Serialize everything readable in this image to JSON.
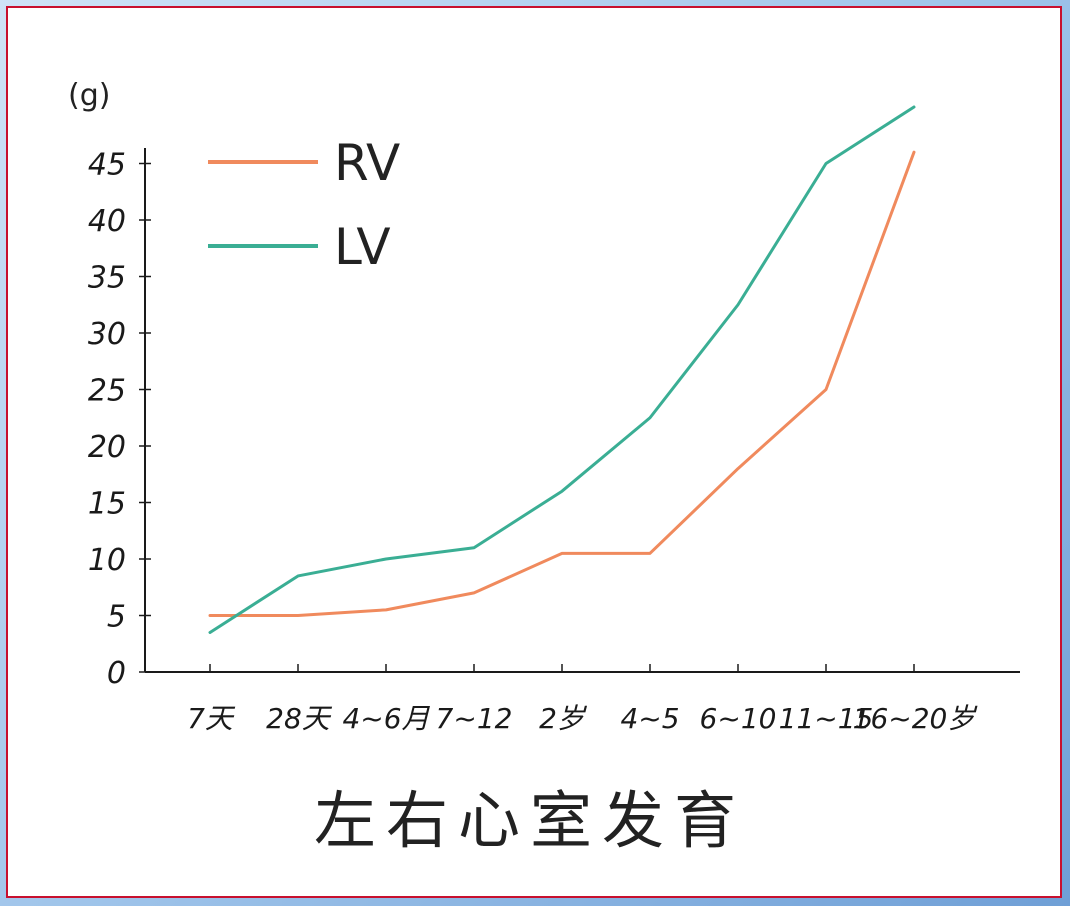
{
  "chart_data": {
    "type": "line",
    "title": "左右心室发育",
    "ylabel": "(g)",
    "xlabel": "",
    "categories": [
      "7天",
      "28天",
      "4~6月",
      "7~12",
      "2岁",
      "4~5",
      "6~10",
      "11~15",
      "16~20岁"
    ],
    "y_ticks": [
      "0",
      "5",
      "10",
      "15",
      "20",
      "25",
      "30",
      "35",
      "40",
      "45"
    ],
    "ylim": [
      0,
      50
    ],
    "grid": false,
    "legend_position": "top-left",
    "series": [
      {
        "name": "RV",
        "color": "#f08a5d",
        "x": [
          0,
          1,
          2,
          3,
          4,
          5,
          6,
          7,
          8
        ],
        "values": [
          5,
          5,
          5.5,
          7,
          10.5,
          10.5,
          18,
          25,
          46
        ]
      },
      {
        "name": "LV",
        "color": "#3aae94",
        "x": [
          0,
          1,
          2,
          3,
          4,
          5,
          6,
          7,
          8
        ],
        "values": [
          3.5,
          8.5,
          10,
          11,
          16,
          22.5,
          32.5,
          45,
          50
        ]
      }
    ]
  }
}
